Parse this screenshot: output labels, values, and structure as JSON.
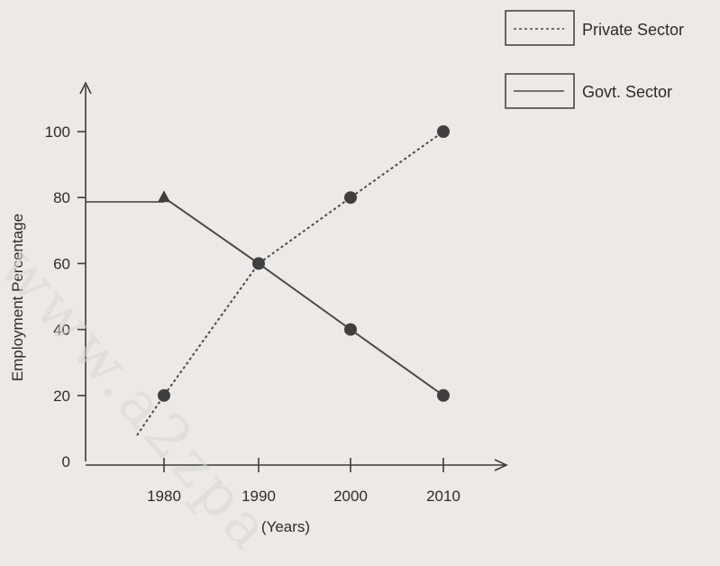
{
  "watermark": "www.a2zpa",
  "chart_data": {
    "type": "line",
    "categories": [
      "1980",
      "1990",
      "2000",
      "2010"
    ],
    "x_tick_labels": [
      "1980",
      "1990",
      "2000",
      "2010"
    ],
    "y_ticks": [
      0,
      20,
      40,
      60,
      80,
      100
    ],
    "ylim": [
      0,
      100
    ],
    "xlabel": "(Years)",
    "ylabel": "Employment Percentage",
    "grid": false,
    "legend_position": "top-right",
    "series": [
      {
        "name": "Private Sector",
        "style": "dashed",
        "color": "#4a4a4a",
        "values": [
          20,
          60,
          80,
          100
        ]
      },
      {
        "name": "Govt. Sector",
        "style": "solid",
        "color": "#4a4a4a",
        "values": [
          80,
          60,
          40,
          20
        ]
      }
    ]
  }
}
